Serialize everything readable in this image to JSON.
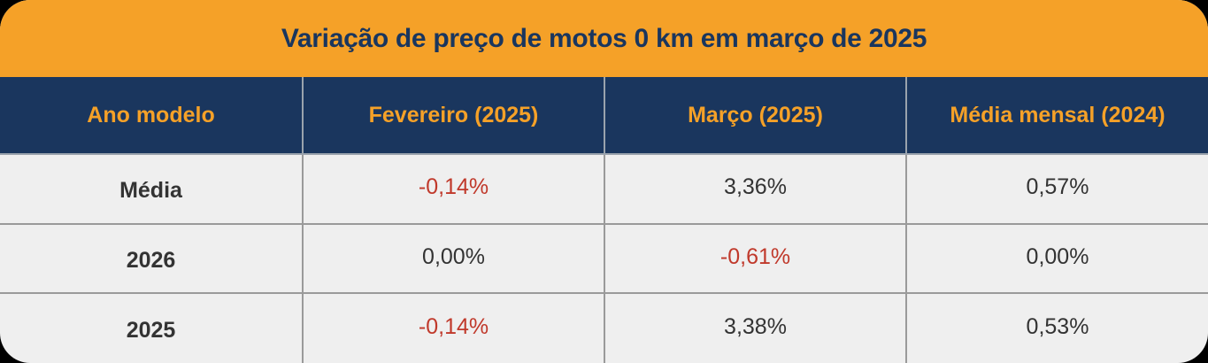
{
  "chart_data": {
    "type": "table",
    "title": "Variação de preço de motos 0 km em março de 2025",
    "columns": [
      "Ano modelo",
      "Fevereiro (2025)",
      "Março (2025)",
      "Média mensal (2024)"
    ],
    "rows": [
      {
        "label": "Média",
        "values": [
          "-0,14%",
          "3,36%",
          "0,57%"
        ],
        "negative": [
          true,
          false,
          false
        ]
      },
      {
        "label": "2026",
        "values": [
          "0,00%",
          "-0,61%",
          "0,00%"
        ],
        "negative": [
          false,
          true,
          false
        ]
      },
      {
        "label": "2025",
        "values": [
          "-0,14%",
          "3,38%",
          "0,53%"
        ],
        "negative": [
          true,
          false,
          false
        ]
      }
    ]
  },
  "colors": {
    "title_bg": "#f5a128",
    "title_text": "#1a365e",
    "header_bg": "#1a365e",
    "header_text": "#f5a128",
    "body_bg": "#efefef",
    "text": "#333333",
    "negative": "#c0392b"
  }
}
